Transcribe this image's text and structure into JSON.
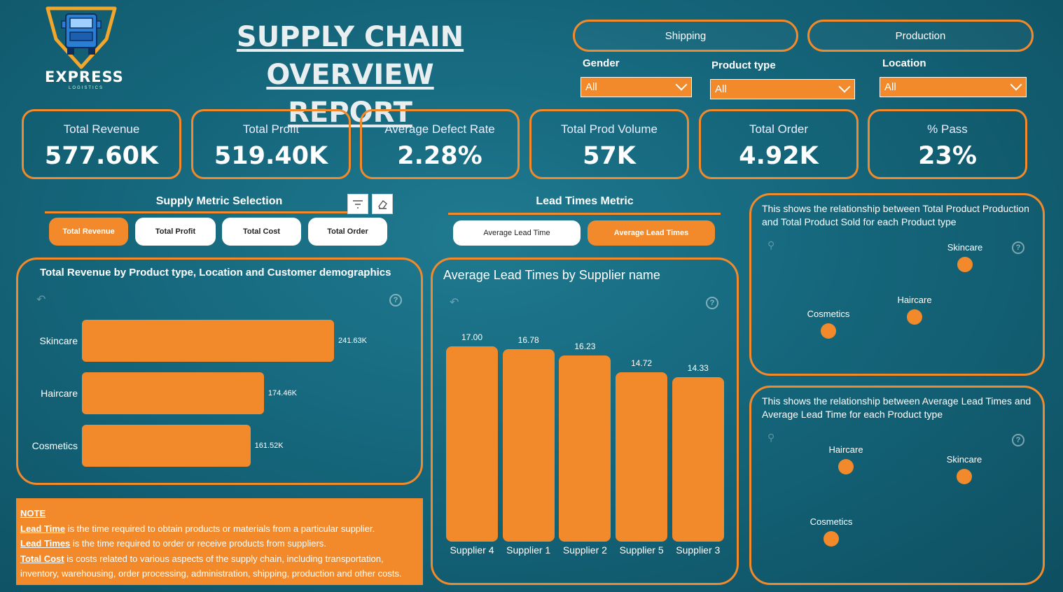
{
  "logo": {
    "brand": "EXPRESS",
    "sub": "LOGISTICS"
  },
  "title": {
    "line1": "SUPPLY CHAIN OVERVIEW",
    "line2": "REPORT"
  },
  "nav": {
    "shipping": "Shipping",
    "production": "Production"
  },
  "slicers": [
    {
      "label": "Gender",
      "value": "All"
    },
    {
      "label": "Product type",
      "value": "All"
    },
    {
      "label": "Location",
      "value": "All"
    }
  ],
  "kpis": [
    {
      "label": "Total Revenue",
      "value": "577.60K"
    },
    {
      "label": "Total Profit",
      "value": "519.40K"
    },
    {
      "label": "Average Defect Rate",
      "value": "2.28%"
    },
    {
      "label": "Total Prod Volume",
      "value": "57K"
    },
    {
      "label": "Total Order",
      "value": "4.92K"
    },
    {
      "label": "% Pass",
      "value": "23%"
    }
  ],
  "supply_metric": {
    "title": "Supply Metric Selection",
    "options": [
      "Total Revenue",
      "Total Profit",
      "Total Cost",
      "Total Order"
    ]
  },
  "lead_metric": {
    "title": "Lead Times Metric",
    "options": [
      "Average Lead Time",
      "Average Lead Times"
    ]
  },
  "scatter1_title": "This shows the relationship between Total Product Production and Total Product Sold for each Product type",
  "scatter2_title": "This shows the relationship between Average Lead Times and Average Lead Time for each Product type",
  "note": {
    "heading": "NOTE",
    "lines": [
      {
        "term": "Lead Time",
        "text": " is the time required to obtain products or materials from a particular supplier."
      },
      {
        "term": "Lead Times",
        "text": " is the time required to order or receive products from suppliers."
      },
      {
        "term": "Total Cost",
        "text": "  is  costs related to various aspects of the supply chain, including transportation, inventory, warehousing, order processing, administration, shipping, production and other costs."
      }
    ]
  },
  "colors": {
    "accent": "#f28a2b",
    "background": "#15667b"
  },
  "chart_data": [
    {
      "type": "bar",
      "orientation": "horizontal",
      "title": "Total Revenue by Product type, Location and Customer demographics",
      "categories": [
        "Skincare",
        "Haircare",
        "Cosmetics"
      ],
      "values": [
        241.63,
        174.46,
        161.52
      ],
      "value_labels": [
        "241.63K",
        "174.46K",
        "161.52K"
      ]
    },
    {
      "type": "bar",
      "title": "Average Lead Times by Supplier name",
      "categories": [
        "Supplier 4",
        "Supplier 1",
        "Supplier 2",
        "Supplier 5",
        "Supplier 3"
      ],
      "values": [
        17.0,
        16.78,
        16.23,
        14.72,
        14.33
      ],
      "value_labels": [
        "17.00",
        "16.78",
        "16.23",
        "14.72",
        "14.33"
      ]
    },
    {
      "type": "scatter",
      "points": [
        {
          "label": "Skincare"
        },
        {
          "label": "Haircare"
        },
        {
          "label": "Cosmetics"
        }
      ]
    },
    {
      "type": "scatter",
      "points": [
        {
          "label": "Haircare"
        },
        {
          "label": "Skincare"
        },
        {
          "label": "Cosmetics"
        }
      ]
    }
  ]
}
